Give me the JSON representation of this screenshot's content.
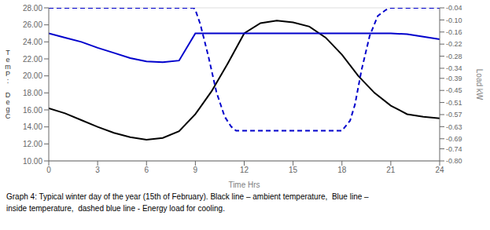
{
  "chart_data": {
    "type": "line",
    "xlabel": "Time Hrs",
    "ylabel": "T\ne\nm\nP\n:\n\nD\ne\ng\nC",
    "y2label": "Load kW",
    "xlim": [
      0,
      24
    ],
    "xticks": [
      0,
      3,
      6,
      9,
      12,
      15,
      18,
      21,
      24
    ],
    "ylim": [
      10.0,
      28.0
    ],
    "yticks": [
      {
        "value": 10.0,
        "label": "10.00"
      },
      {
        "value": 12.0,
        "label": "12.00"
      },
      {
        "value": 14.0,
        "label": "14.00"
      },
      {
        "value": 16.0,
        "label": "16.00"
      },
      {
        "value": 18.0,
        "label": "18.00"
      },
      {
        "value": 20.0,
        "label": "20.00"
      },
      {
        "value": 22.0,
        "label": "22.00"
      },
      {
        "value": 24.0,
        "label": "24.00"
      },
      {
        "value": 26.0,
        "label": "26.00"
      },
      {
        "value": 28.0,
        "label": "28.00"
      }
    ],
    "y2lim": [
      -0.8,
      -0.04
    ],
    "y2ticks": [
      -0.04,
      {
        "value": -0.1,
        "label": "-0.10"
      },
      -0.16,
      -0.22,
      -0.28,
      -0.34,
      -0.39,
      -0.45,
      -0.51,
      -0.57,
      -0.63,
      -0.69,
      -0.74,
      {
        "value": -0.8,
        "label": "-0.80"
      }
    ],
    "grid": "y",
    "series": [
      {
        "color": "#000000",
        "x": [
          0,
          1,
          2,
          3,
          4,
          5,
          6,
          7,
          8,
          9,
          10,
          11,
          12,
          13,
          14,
          15,
          16,
          17,
          18,
          19,
          20,
          21,
          22,
          23,
          24
        ],
        "values": [
          16.2,
          15.6,
          14.8,
          14.0,
          13.3,
          12.8,
          12.5,
          12.7,
          13.5,
          15.5,
          18.2,
          21.5,
          25.0,
          26.2,
          26.5,
          26.3,
          25.8,
          24.5,
          22.5,
          20.0,
          18.0,
          16.5,
          15.5,
          15.2,
          15.0
        ]
      },
      {
        "color": "#0000cc",
        "x": [
          0,
          1,
          2,
          3,
          4,
          5,
          6,
          7,
          8,
          9,
          10,
          11,
          12,
          13,
          14,
          15,
          16,
          17,
          18,
          19,
          20,
          21,
          22,
          23,
          24
        ],
        "values": [
          25.0,
          24.5,
          24.0,
          23.3,
          22.7,
          22.1,
          21.7,
          21.6,
          21.8,
          25.0,
          25.0,
          25.0,
          25.0,
          25.0,
          25.0,
          25.0,
          25.0,
          25.0,
          25.0,
          25.0,
          25.0,
          25.0,
          24.9,
          24.6,
          24.3
        ]
      },
      {
        "color": "#0000cc",
        "line_style": "dashed",
        "axis": "y2",
        "x": [
          0,
          8.9,
          9.0,
          9.3,
          9.8,
          10.3,
          10.8,
          11.2,
          11.5,
          12.0,
          13.0,
          14.0,
          15.0,
          16.0,
          17.0,
          18.0,
          18.5,
          18.8,
          19.2,
          19.7,
          20.2,
          20.7,
          21.0,
          24
        ],
        "values": [
          -0.04,
          -0.04,
          -0.05,
          -0.12,
          -0.28,
          -0.46,
          -0.58,
          -0.63,
          -0.65,
          -0.65,
          -0.65,
          -0.65,
          -0.65,
          -0.65,
          -0.65,
          -0.65,
          -0.6,
          -0.52,
          -0.35,
          -0.18,
          -0.08,
          -0.05,
          -0.04,
          -0.04
        ]
      }
    ],
    "annotations": [
      "Graph 4: Typical winter day of the year (15th of February). Black line – ambient temperature,  Blue line –",
      "inside temperature,  dashed blue line - Energy load for cooling."
    ]
  }
}
